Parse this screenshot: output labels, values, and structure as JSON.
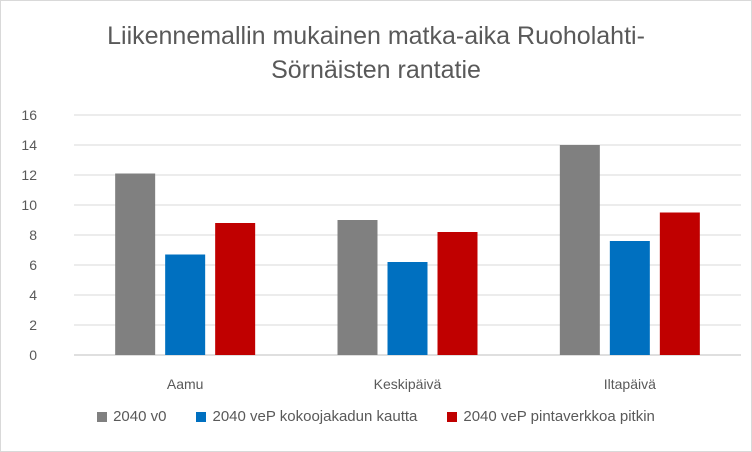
{
  "chart_data": {
    "type": "bar",
    "title_lines": [
      "Liikennemallin mukainen matka-aika Ruoholahti-",
      "Sörnäisten rantatie"
    ],
    "categories": [
      "Aamu",
      "Keskipäivä",
      "Iltapäivä"
    ],
    "series": [
      {
        "name": "2040 v0",
        "color": "#808080",
        "values": [
          12.1,
          9.0,
          14.0
        ]
      },
      {
        "name": "2040 veP kokoojakadun kautta",
        "color": "#0070c0",
        "values": [
          6.7,
          6.2,
          7.6
        ]
      },
      {
        "name": "2040 veP pintaverkkoa pitkin",
        "color": "#c00000",
        "values": [
          8.8,
          8.2,
          9.5
        ]
      }
    ],
    "ylim": [
      0,
      16
    ],
    "yticks": [
      "0",
      "2",
      "4",
      "6",
      "8",
      "10",
      "12",
      "14",
      "16"
    ],
    "grid": true,
    "legend_position": "bottom"
  }
}
